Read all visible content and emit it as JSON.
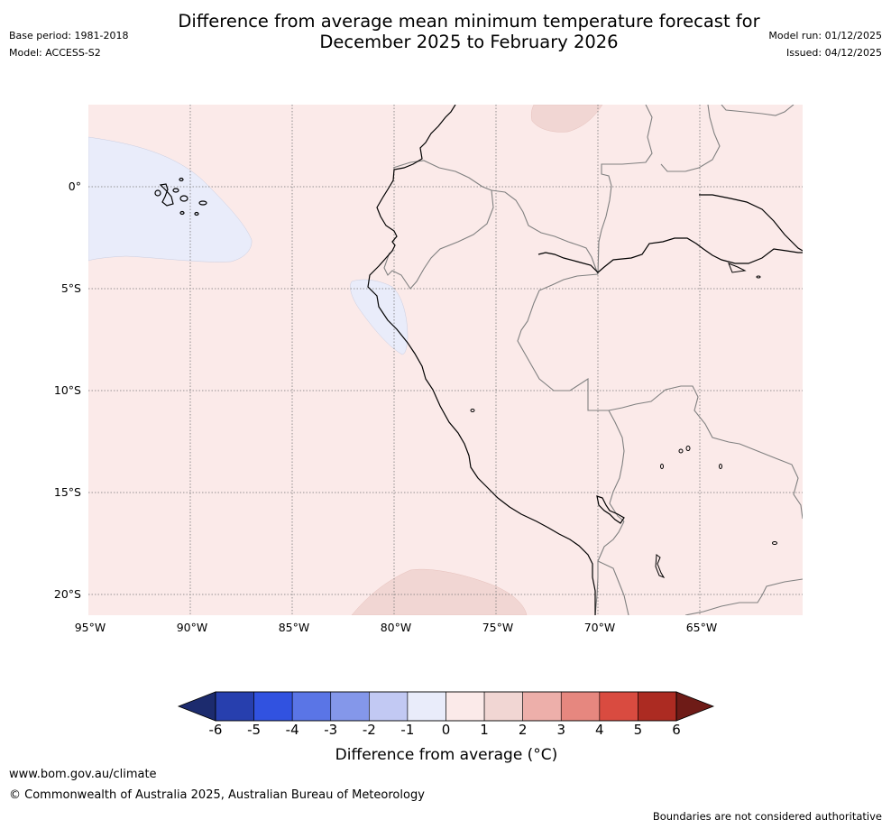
{
  "title": {
    "line1": "Difference from average mean minimum temperature forecast for",
    "line2": "December 2025 to February 2026"
  },
  "meta_left": {
    "base_period": "Base period: 1981-2018",
    "model": "Model: ACCESS-S2"
  },
  "meta_right": {
    "model_run": "Model run: 01/12/2025",
    "issued": "Issued: 04/12/2025"
  },
  "map": {
    "latitude_labels": [
      "0°",
      "5°S",
      "10°S",
      "15°S",
      "20°S"
    ],
    "longitude_labels": [
      "95°W",
      "90°W",
      "85°W",
      "80°W",
      "75°W",
      "70°W",
      "65°W"
    ]
  },
  "colorbar": {
    "ticks": [
      "-6",
      "-5",
      "-4",
      "-3",
      "-2",
      "-1",
      "0",
      "1",
      "2",
      "3",
      "4",
      "5",
      "6"
    ],
    "colors": [
      "#273fae",
      "#3152e0",
      "#5a75e6",
      "#8497ea",
      "#c2c9f3",
      "#e9ecfa",
      "#fbeae9",
      "#f1d6d3",
      "#edafaa",
      "#e6877f",
      "#d94b40",
      "#ac2b22"
    ],
    "under_color": "#1c2b6e",
    "over_color": "#6e1b17",
    "label": "Difference from average (°C)"
  },
  "footer": {
    "url": "www.bom.gov.au/climate",
    "copyright": "© Commonwealth of Australia 2025, Australian Bureau of Meteorology",
    "disclaimer": "Boundaries are not considered authoritative"
  }
}
